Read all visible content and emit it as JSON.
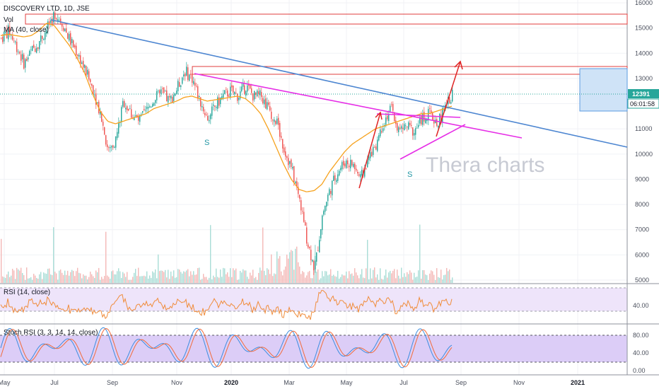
{
  "chart_data": {
    "type": "candlestick",
    "symbol_label": "DISCOVERY LTD, 1D, JSE",
    "volume_label": "Vol",
    "ma_label": "MA (40, close)",
    "rsi_label": "RSI (14, close)",
    "stoch_label": "Stoch RSI (3, 3, 14, 14, close)",
    "watermark": "Thera charts",
    "price_axis": {
      "range": [
        4800,
        16100
      ],
      "ticks": [
        16000,
        15000,
        14000,
        13000,
        12000,
        11000,
        10000,
        9000,
        8000,
        7000,
        6000,
        5000
      ]
    },
    "rsi_axis": {
      "ticks": [
        "40.00"
      ],
      "bands": [
        70,
        30
      ]
    },
    "stoch_axis": {
      "ticks": [
        "80.00",
        "40.00",
        "0.00"
      ],
      "bands": [
        80,
        20
      ]
    },
    "time_axis": [
      "May",
      "Jul",
      "Sep",
      "Nov",
      "2020",
      "Mar",
      "May",
      "Jul",
      "Sep",
      "Nov",
      "2021"
    ],
    "last_price": "12391",
    "countdown": "06:01:58",
    "annotations": {
      "shoulder_marks": [
        "S",
        "S"
      ]
    },
    "close_series": [
      14600,
      14900,
      14300,
      13600,
      14100,
      14500,
      15000,
      15600,
      15200,
      14500,
      14000,
      13300,
      12600,
      11600,
      10100,
      10600,
      12100,
      11600,
      11300,
      11700,
      12200,
      12400,
      12100,
      12600,
      13300,
      13000,
      12100,
      11400,
      11900,
      12300,
      12500,
      12300,
      12700,
      12300,
      12300,
      11800,
      11300,
      10200,
      9400,
      8200,
      6600,
      5400,
      7600,
      8600,
      9300,
      9700,
      9600,
      9000,
      9800,
      10400,
      11300,
      11800,
      10900,
      11100,
      10900,
      11400,
      11600,
      11200,
      11800,
      12400
    ],
    "ma_series": [
      14700,
      14750,
      14700,
      14650,
      14700,
      14900,
      15200,
      15100,
      14700,
      14300,
      13800,
      13200,
      12400,
      11700,
      11300,
      11200,
      11300,
      11400,
      11500,
      11600,
      11800,
      11900,
      12000,
      12100,
      12250,
      12300,
      12200,
      12100,
      12150,
      12200,
      12250,
      12300,
      12200,
      11950,
      11600,
      11000,
      10300,
      9600,
      9000,
      8600,
      8500,
      8550,
      8800,
      9300,
      9700,
      10100,
      10400,
      10600,
      10800,
      11000,
      11100,
      11200,
      11300,
      11400,
      11500,
      11600,
      11600,
      11700,
      11800,
      11900
    ]
  },
  "colors": {
    "up": "#26a69a",
    "down": "#ef5350",
    "ma": "#f6a21e",
    "trend_blue": "#4d86d1",
    "neckline": "#e62ee6",
    "arrow_red": "#e02424",
    "resistance": "#e03c3c",
    "rsi_line": "#f08c3a",
    "stoch_k": "#3d8ee0",
    "stoch_d": "#f26b3a",
    "band_fill": "#e8dcf7",
    "stoch_fill": "#dccdf7"
  }
}
